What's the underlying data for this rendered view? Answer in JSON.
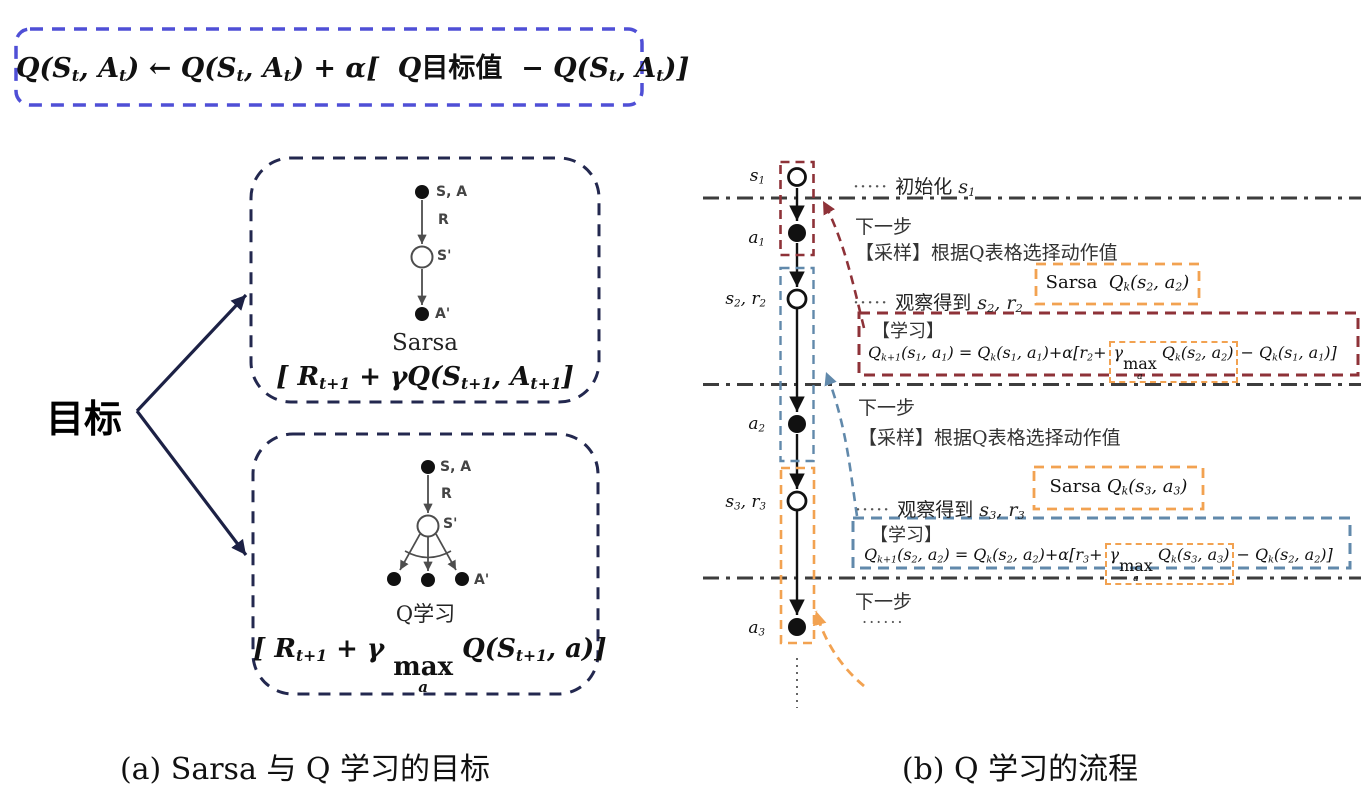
{
  "colors": {
    "top_box_border": "#4f4fd6",
    "panel_border_navy": "#23284f",
    "target_arrow_navy": "#1c2145",
    "flow_red": "#8e3238",
    "flow_blue": "#6189ab",
    "flow_orange": "#f2a251",
    "dashdot_line": "#3d3d3d",
    "backup_gray": "#4d4d4d",
    "node_black": "#111111"
  },
  "top_formula": {
    "tokens": [
      {
        "t": "Q(S"
      },
      {
        "t": "t",
        "sub": 1
      },
      {
        "t": ", A"
      },
      {
        "t": "t",
        "sub": 1
      },
      {
        "t": ") ← Q(S"
      },
      {
        "t": "t",
        "sub": 1
      },
      {
        "t": ", A"
      },
      {
        "t": "t",
        "sub": 1
      },
      {
        "t": ") + α[  "
      },
      {
        "t": "Q"
      },
      {
        "t": "目标值",
        "cls": "up"
      },
      {
        "t": "  − Q(S"
      },
      {
        "t": "t",
        "sub": 1
      },
      {
        "t": ", A"
      },
      {
        "t": "t",
        "sub": 1
      },
      {
        "t": ")]"
      }
    ]
  },
  "target_label": "目标",
  "sarsa_panel": {
    "node_sa": "S, A",
    "node_r": "R",
    "node_sp": "S'",
    "node_ap": "A'",
    "title": "Sarsa",
    "formula": [
      {
        "t": "[ R"
      },
      {
        "t": "t+1",
        "sub": 1
      },
      {
        "t": " + γQ(S"
      },
      {
        "t": "t+1",
        "sub": 1
      },
      {
        "t": ", A"
      },
      {
        "t": "t+1",
        "sub": 1
      },
      {
        "t": "]"
      }
    ]
  },
  "q_panel": {
    "node_sa": "S, A",
    "node_r": "R",
    "node_sp": "S'",
    "node_ap": "A'",
    "title": "Q学习",
    "formula": [
      {
        "t": "[ R"
      },
      {
        "t": "t+1",
        "sub": 1
      },
      {
        "t": " + γ "
      },
      {
        "t": "max",
        "under": "a"
      },
      {
        "t": " Q(S"
      },
      {
        "t": "t+1",
        "sub": 1
      },
      {
        "t": ", a)]"
      }
    ]
  },
  "flow": {
    "labels": {
      "s1": [
        {
          "t": "s"
        },
        {
          "t": "1",
          "sub": 1
        }
      ],
      "a1": [
        {
          "t": "a"
        },
        {
          "t": "1",
          "sub": 1
        }
      ],
      "s2r2": [
        {
          "t": "s"
        },
        {
          "t": "2",
          "sub": 1
        },
        {
          "t": ", r"
        },
        {
          "t": "2",
          "sub": 1
        }
      ],
      "a2": [
        {
          "t": "a"
        },
        {
          "t": "2",
          "sub": 1
        }
      ],
      "s3r3": [
        {
          "t": "s"
        },
        {
          "t": "3",
          "sub": 1
        },
        {
          "t": ", r"
        },
        {
          "t": "3",
          "sub": 1
        }
      ],
      "a3": [
        {
          "t": "a"
        },
        {
          "t": "3",
          "sub": 1
        }
      ]
    },
    "init": [
      {
        "t": "····· ",
        "cls": "dots"
      },
      {
        "t": "初始化",
        "cls": "up"
      },
      {
        "t": " s"
      },
      {
        "t": "1",
        "sub": 1
      }
    ],
    "next_step": "下一步",
    "sampling": "【采样】根据Q表格选择动作值",
    "learn_label": "【学习】",
    "observe2": [
      {
        "t": "····· ",
        "cls": "dots"
      },
      {
        "t": "观察得到",
        "cls": "up"
      },
      {
        "t": " s"
      },
      {
        "t": "2",
        "sub": 1
      },
      {
        "t": ", r"
      },
      {
        "t": "2",
        "sub": 1
      }
    ],
    "observe3": [
      {
        "t": "····· ",
        "cls": "dots"
      },
      {
        "t": "观察得到",
        "cls": "up"
      },
      {
        "t": " s"
      },
      {
        "t": "3",
        "sub": 1
      },
      {
        "t": ", r"
      },
      {
        "t": "3",
        "sub": 1
      }
    ],
    "sarsa_q2": [
      {
        "t": "Sarsa  ",
        "cls": "up"
      },
      {
        "t": "Q"
      },
      {
        "t": "k",
        "sub": 1
      },
      {
        "t": "(s"
      },
      {
        "t": "2",
        "sub": 1
      },
      {
        "t": ", a"
      },
      {
        "t": "2",
        "sub": 1
      },
      {
        "t": ")"
      }
    ],
    "sarsa_q3": [
      {
        "t": "Sarsa ",
        "cls": "up"
      },
      {
        "t": "Q"
      },
      {
        "t": "k",
        "sub": 1
      },
      {
        "t": "(s"
      },
      {
        "t": "3",
        "sub": 1
      },
      {
        "t": ", a"
      },
      {
        "t": "3",
        "sub": 1
      },
      {
        "t": ")"
      }
    ],
    "learn1": [
      {
        "t": "Q"
      },
      {
        "t": "k+1",
        "sub": 1
      },
      {
        "t": "(s"
      },
      {
        "t": "1",
        "sub": 1
      },
      {
        "t": ", a"
      },
      {
        "t": "1",
        "sub": 1
      },
      {
        "t": ") = Q"
      },
      {
        "t": "k",
        "sub": 1
      },
      {
        "t": "(s"
      },
      {
        "t": "1",
        "sub": 1
      },
      {
        "t": ", a"
      },
      {
        "t": "1",
        "sub": 1
      },
      {
        "t": ")+α[r"
      },
      {
        "t": "2",
        "sub": 1
      },
      {
        "t": "+"
      },
      {
        "box": "orange",
        "items": [
          {
            "t": "γ"
          },
          {
            "t": "max",
            "under": "a"
          },
          {
            "t": " Q"
          },
          {
            "t": "k",
            "sub": 1
          },
          {
            "t": "(s"
          },
          {
            "t": "2",
            "sub": 1
          },
          {
            "t": ", a"
          },
          {
            "t": "2",
            "sub": 1
          },
          {
            "t": ")"
          }
        ]
      },
      {
        "t": "− Q"
      },
      {
        "t": "k",
        "sub": 1
      },
      {
        "t": "(s"
      },
      {
        "t": "1",
        "sub": 1
      },
      {
        "t": ", a"
      },
      {
        "t": "1",
        "sub": 1
      },
      {
        "t": ")]"
      }
    ],
    "learn2": [
      {
        "t": "Q"
      },
      {
        "t": "k+1",
        "sub": 1
      },
      {
        "t": "(s"
      },
      {
        "t": "2",
        "sub": 1
      },
      {
        "t": ", a"
      },
      {
        "t": "2",
        "sub": 1
      },
      {
        "t": ") = Q"
      },
      {
        "t": "k",
        "sub": 1
      },
      {
        "t": "(s"
      },
      {
        "t": "2",
        "sub": 1
      },
      {
        "t": ", a"
      },
      {
        "t": "2",
        "sub": 1
      },
      {
        "t": ")+α[r"
      },
      {
        "t": "3",
        "sub": 1
      },
      {
        "t": "+"
      },
      {
        "box": "orange",
        "items": [
          {
            "t": "γ"
          },
          {
            "t": "max",
            "under": "a"
          },
          {
            "t": " Q"
          },
          {
            "t": "k",
            "sub": 1
          },
          {
            "t": "(s"
          },
          {
            "t": "3",
            "sub": 1
          },
          {
            "t": ", a"
          },
          {
            "t": "3",
            "sub": 1
          },
          {
            "t": ")"
          }
        ]
      },
      {
        "t": "− Q"
      },
      {
        "t": "k",
        "sub": 1
      },
      {
        "t": "(s"
      },
      {
        "t": "2",
        "sub": 1
      },
      {
        "t": ", a"
      },
      {
        "t": "2",
        "sub": 1
      },
      {
        "t": ")]"
      }
    ],
    "ellipsis": "......"
  },
  "captions": {
    "a": "(a) Sarsa 与 Q 学习的目标",
    "b": "(b) Q 学习的流程"
  }
}
